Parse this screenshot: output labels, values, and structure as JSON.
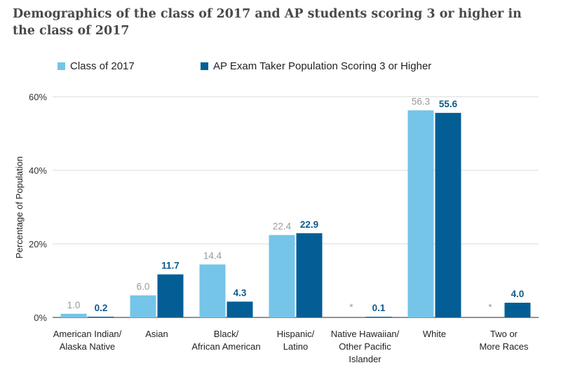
{
  "chart_data": {
    "type": "bar",
    "title": "Demographics of the class of 2017 and AP students scoring 3 or higher in the class of 2017",
    "ylabel": "Percentage of Population",
    "xlabel": "",
    "ylim": [
      0,
      60
    ],
    "yticks": [
      0,
      20,
      40,
      60
    ],
    "ytick_labels": [
      "0%",
      "20%",
      "40%",
      "60%"
    ],
    "grid": true,
    "legend_position": "top-left",
    "categories": [
      [
        "American Indian/",
        "Alaska Native"
      ],
      [
        "Asian"
      ],
      [
        "Black/",
        "African American"
      ],
      [
        "Hispanic/",
        "Latino"
      ],
      [
        "Native Hawaiian/",
        "Other Pacific",
        "Islander"
      ],
      [
        "White"
      ],
      [
        "Two or",
        "More Races"
      ]
    ],
    "series": [
      {
        "name": "Class of 2017",
        "color": "#74c5e8",
        "values": [
          1.0,
          6.0,
          14.4,
          22.4,
          null,
          56.3,
          null
        ],
        "labels": [
          "1.0",
          "6.0",
          "14.4",
          "22.4",
          "*",
          "56.3",
          "*"
        ]
      },
      {
        "name": "AP Exam Taker Population Scoring 3 or Higher",
        "color": "#045e96",
        "values": [
          0.2,
          11.7,
          4.3,
          22.9,
          0.1,
          55.6,
          4.0
        ],
        "labels": [
          "0.2",
          "11.7",
          "4.3",
          "22.9",
          "0.1",
          "55.6",
          "4.0"
        ]
      }
    ]
  }
}
